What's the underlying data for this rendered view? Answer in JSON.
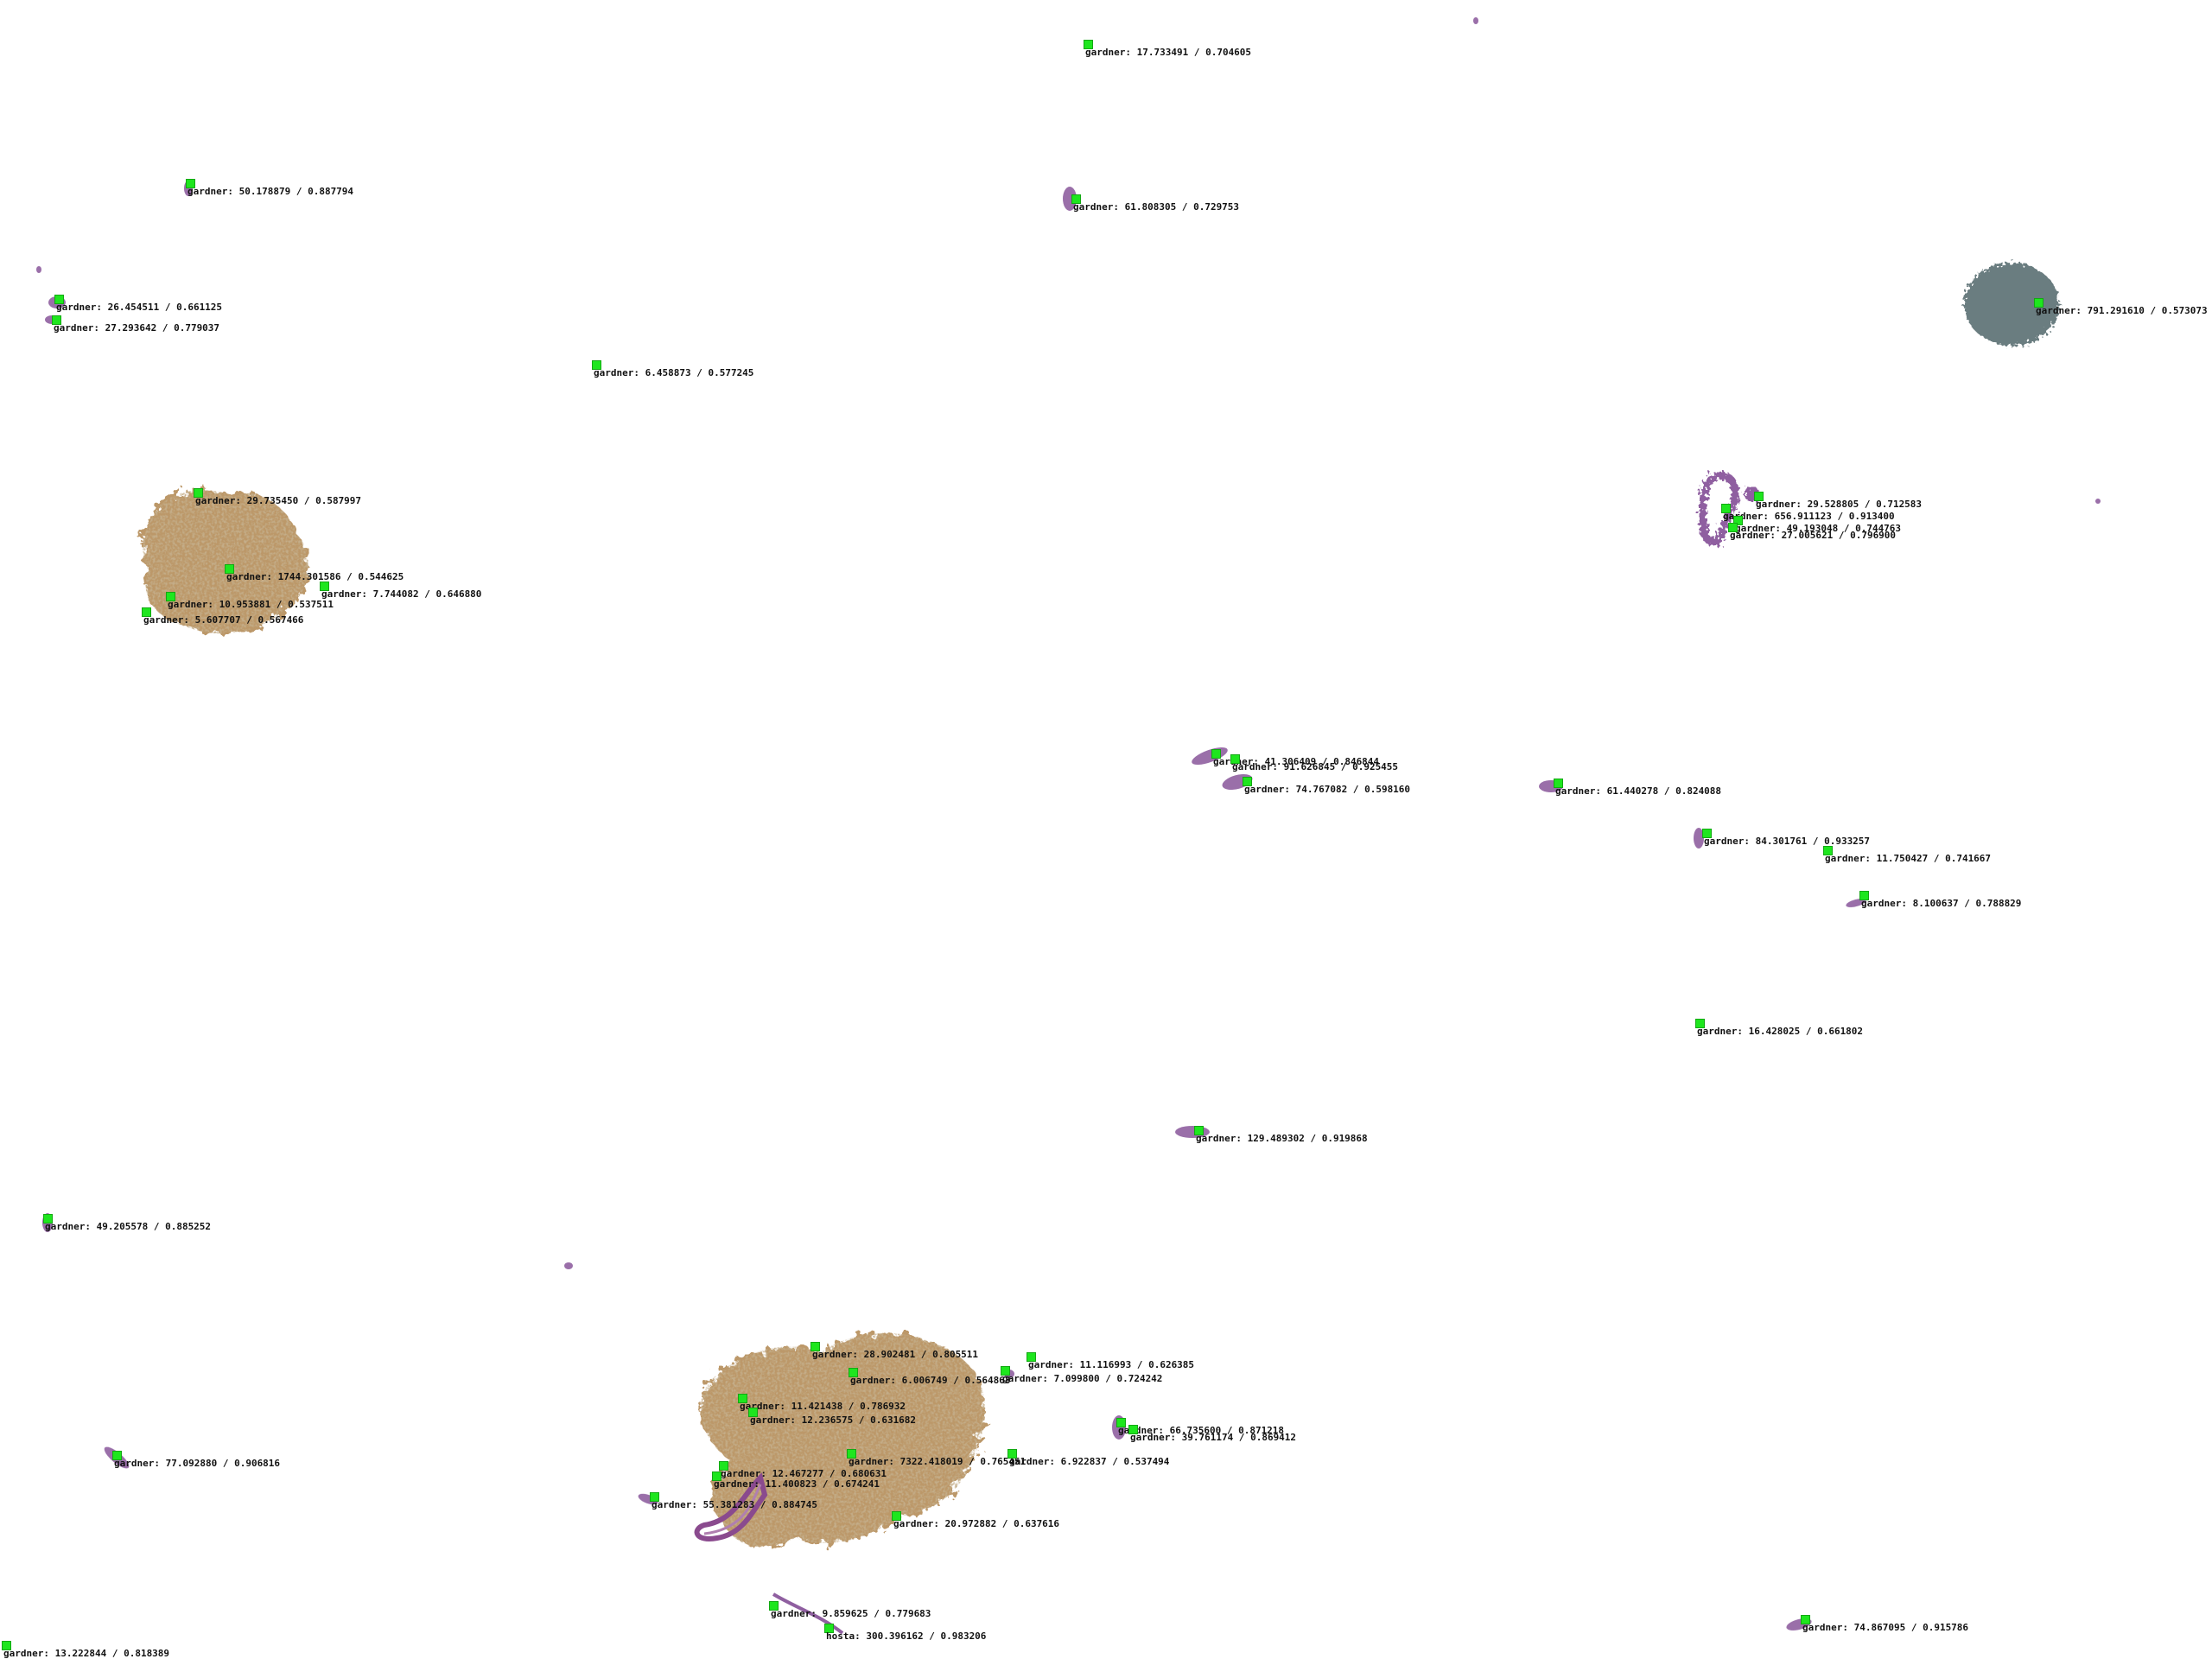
{
  "colors": {
    "background": "#ffffff",
    "marker": "#1ee61e",
    "label_text": "#111111",
    "cluster_fill": "#b0864f",
    "blob_purple": "#8f5fa0",
    "dark_blob": "#6b7d80"
  },
  "detections": [
    {
      "text": "gardner: 17.733491 / 0.704605"
    },
    {
      "text": "gardner: 50.178879 / 0.887794"
    },
    {
      "text": "gardner: 61.808305 / 0.729753"
    },
    {
      "text": "gardner: 26.454511 / 0.661125"
    },
    {
      "text": "gardner: 27.293642 / 0.779037"
    },
    {
      "text": "gardner: 6.458873 / 0.577245"
    },
    {
      "text": "gardner: 791.291610 / 0.573073"
    },
    {
      "text": "gardner: 29.735450 / 0.587997"
    },
    {
      "text": "gardner: 1744.301586 / 0.544625"
    },
    {
      "text": "gardner: 7.744082 / 0.646880"
    },
    {
      "text": "gardner: 10.953881 / 0.537511"
    },
    {
      "text": "gardner: 5.607707 / 0.567466"
    },
    {
      "text": "gardner: 29.528805 / 0.712583"
    },
    {
      "text": "gardner: 656.911123 / 0.913400"
    },
    {
      "text": "gardner: 49.193048 / 0.744763"
    },
    {
      "text": "gardner: 27.005621 / 0.796900"
    },
    {
      "text": "gardner: 41.306409 / 0.846844"
    },
    {
      "text": "gardner: 91.626845 / 0.925455"
    },
    {
      "text": "gardner: 74.767082 / 0.598160"
    },
    {
      "text": "gardner: 61.440278 / 0.824088"
    },
    {
      "text": "gardner: 84.301761 / 0.933257"
    },
    {
      "text": "gardner: 11.750427 / 0.741667"
    },
    {
      "text": "gardner: 8.100637 / 0.788829"
    },
    {
      "text": "gardner: 16.428025 / 0.661802"
    },
    {
      "text": "gardner: 129.489302 / 0.919868"
    },
    {
      "text": "gardner: 49.205578 / 0.885252"
    },
    {
      "text": "gardner: 28.902481 / 0.805511"
    },
    {
      "text": "gardner: 11.116993 / 0.626385"
    },
    {
      "text": "gardner: 6.006749 / 0.564863"
    },
    {
      "text": "gardner: 7.099800 / 0.724242"
    },
    {
      "text": "gardner: 11.421438 / 0.786932"
    },
    {
      "text": "gardner: 12.236575 / 0.631682"
    },
    {
      "text": "gardner: 66.735600 / 0.871218"
    },
    {
      "text": "gardner: 39.761174 / 0.869412"
    },
    {
      "text": "gardner: 77.092880 / 0.906816"
    },
    {
      "text": "gardner: 7322.418019 / 0.765451"
    },
    {
      "text": "gardner: 6.922837 / 0.537494"
    },
    {
      "text": "gardner: 12.467277 / 0.680631"
    },
    {
      "text": "gardner: 11.400823 / 0.674241"
    },
    {
      "text": "gardner: 55.381283 / 0.884745"
    },
    {
      "text": "gardner: 20.972882 / 0.637616"
    },
    {
      "text": "gardner: 9.859625 / 0.779683"
    },
    {
      "text": "hosta: 300.396162 / 0.983206"
    },
    {
      "text": "gardner: 74.867095 / 0.915786"
    },
    {
      "text": "gardner: 13.222844 / 0.818389"
    }
  ]
}
